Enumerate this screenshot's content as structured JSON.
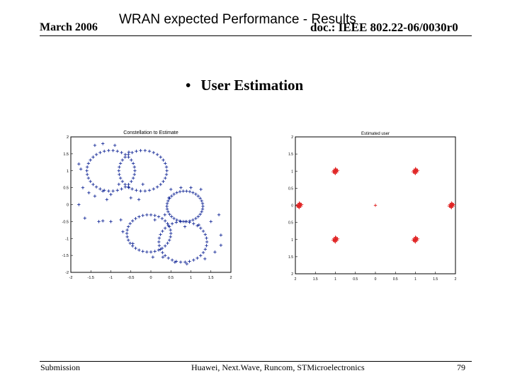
{
  "header": {
    "date": "March 2006",
    "title": "WRAN expected Performance - Results",
    "doc": "doc.: IEEE 802.22-06/0030r0"
  },
  "slide": {
    "bullet": "User Estimation"
  },
  "footer": {
    "left": "Submission",
    "center": "Huawei, Next.Wave, Runcom, STMicroelectronics",
    "page": "79"
  },
  "colors": {
    "left_markers": "#1a2e9a",
    "right_markers": "#e02020"
  },
  "chart_data": [
    {
      "type": "scatter",
      "title": "Constellation to Estimate",
      "xlim": [
        -2,
        2
      ],
      "ylim": [
        -2,
        2
      ],
      "xticks": [
        "-2",
        "-1.5",
        "-1",
        "-0.5",
        "0",
        "0.5",
        "1",
        "1.5",
        "2"
      ],
      "yticks": [
        "2",
        "1.5",
        "1",
        "0.5",
        "0",
        "-0.5",
        "-1",
        "-1.5",
        "-2"
      ],
      "marker": "+",
      "circles": [
        {
          "cx": -1,
          "cy": 1,
          "r": 0.6
        },
        {
          "cx": -0.2,
          "cy": 1,
          "r": 0.6
        },
        {
          "cx": 0.85,
          "cy": -0.05,
          "r": 0.45
        },
        {
          "cx": -0.05,
          "cy": -0.85,
          "r": 0.55
        },
        {
          "cx": 0.8,
          "cy": -1.1,
          "r": 0.6
        }
      ],
      "scatter_points": [
        {
          "x": -1.4,
          "y": 1.75
        },
        {
          "x": -1.2,
          "y": 1.8
        },
        {
          "x": -0.9,
          "y": 1.75
        },
        {
          "x": -0.55,
          "y": 1.55
        },
        {
          "x": -1.8,
          "y": 1.2
        },
        {
          "x": -1.75,
          "y": 1.05
        },
        {
          "x": -1.7,
          "y": 0.5
        },
        {
          "x": -1.55,
          "y": 0.35
        },
        {
          "x": -1.4,
          "y": 0.25
        },
        {
          "x": -1.2,
          "y": 0.4
        },
        {
          "x": -1.0,
          "y": 0.3
        },
        {
          "x": -0.8,
          "y": 0.6
        },
        {
          "x": -0.55,
          "y": 0.5
        },
        {
          "x": -0.3,
          "y": 0.15
        },
        {
          "x": -0.5,
          "y": 0.2
        },
        {
          "x": -1.1,
          "y": 0.15
        },
        {
          "x": -1.8,
          "y": 0.0
        },
        {
          "x": -1.65,
          "y": -0.4
        },
        {
          "x": -1.3,
          "y": -0.5
        },
        {
          "x": -1.2,
          "y": -0.48
        },
        {
          "x": -1.0,
          "y": -0.5
        },
        {
          "x": -0.75,
          "y": -0.45
        },
        {
          "x": 0.5,
          "y": 0.45
        },
        {
          "x": 0.75,
          "y": 0.5
        },
        {
          "x": 1.0,
          "y": 0.5
        },
        {
          "x": 1.25,
          "y": 0.45
        },
        {
          "x": 1.5,
          "y": -0.5
        },
        {
          "x": 1.7,
          "y": -0.3
        },
        {
          "x": 1.75,
          "y": -0.9
        },
        {
          "x": 1.75,
          "y": -1.2
        },
        {
          "x": 1.6,
          "y": -1.4
        },
        {
          "x": 1.35,
          "y": -1.6
        },
        {
          "x": 0.9,
          "y": -1.75
        },
        {
          "x": 0.6,
          "y": -1.7
        },
        {
          "x": 0.3,
          "y": -1.55
        },
        {
          "x": 0.05,
          "y": -1.55
        },
        {
          "x": -0.45,
          "y": -1.15
        },
        {
          "x": -0.7,
          "y": -0.8
        },
        {
          "x": 0.35,
          "y": -0.3
        },
        {
          "x": 0.1,
          "y": -0.45
        },
        {
          "x": 1.2,
          "y": -0.6
        },
        {
          "x": 0.85,
          "y": -0.65
        },
        {
          "x": 0.45,
          "y": 0.2
        },
        {
          "x": -0.2,
          "y": 0.6
        }
      ]
    },
    {
      "type": "scatter",
      "title": "Estimated user",
      "xlim": [
        -2,
        2
      ],
      "ylim": [
        -2,
        2
      ],
      "xticks": [
        "2",
        "1.5",
        "1",
        "0.5",
        "0",
        "0.5",
        "1",
        "1.5",
        "2"
      ],
      "yticks": [
        "2",
        "1.5",
        "1",
        "0.5",
        "0",
        "0.5",
        "1",
        "1.5",
        "2"
      ],
      "marker": "+",
      "clusters": [
        {
          "x": -1,
          "y": 1
        },
        {
          "x": 1,
          "y": 1
        },
        {
          "x": -1.9,
          "y": 0
        },
        {
          "x": 1.9,
          "y": 0
        },
        {
          "x": -1,
          "y": -1
        },
        {
          "x": 1,
          "y": -1
        }
      ],
      "center_point": {
        "x": 0,
        "y": 0
      }
    }
  ]
}
